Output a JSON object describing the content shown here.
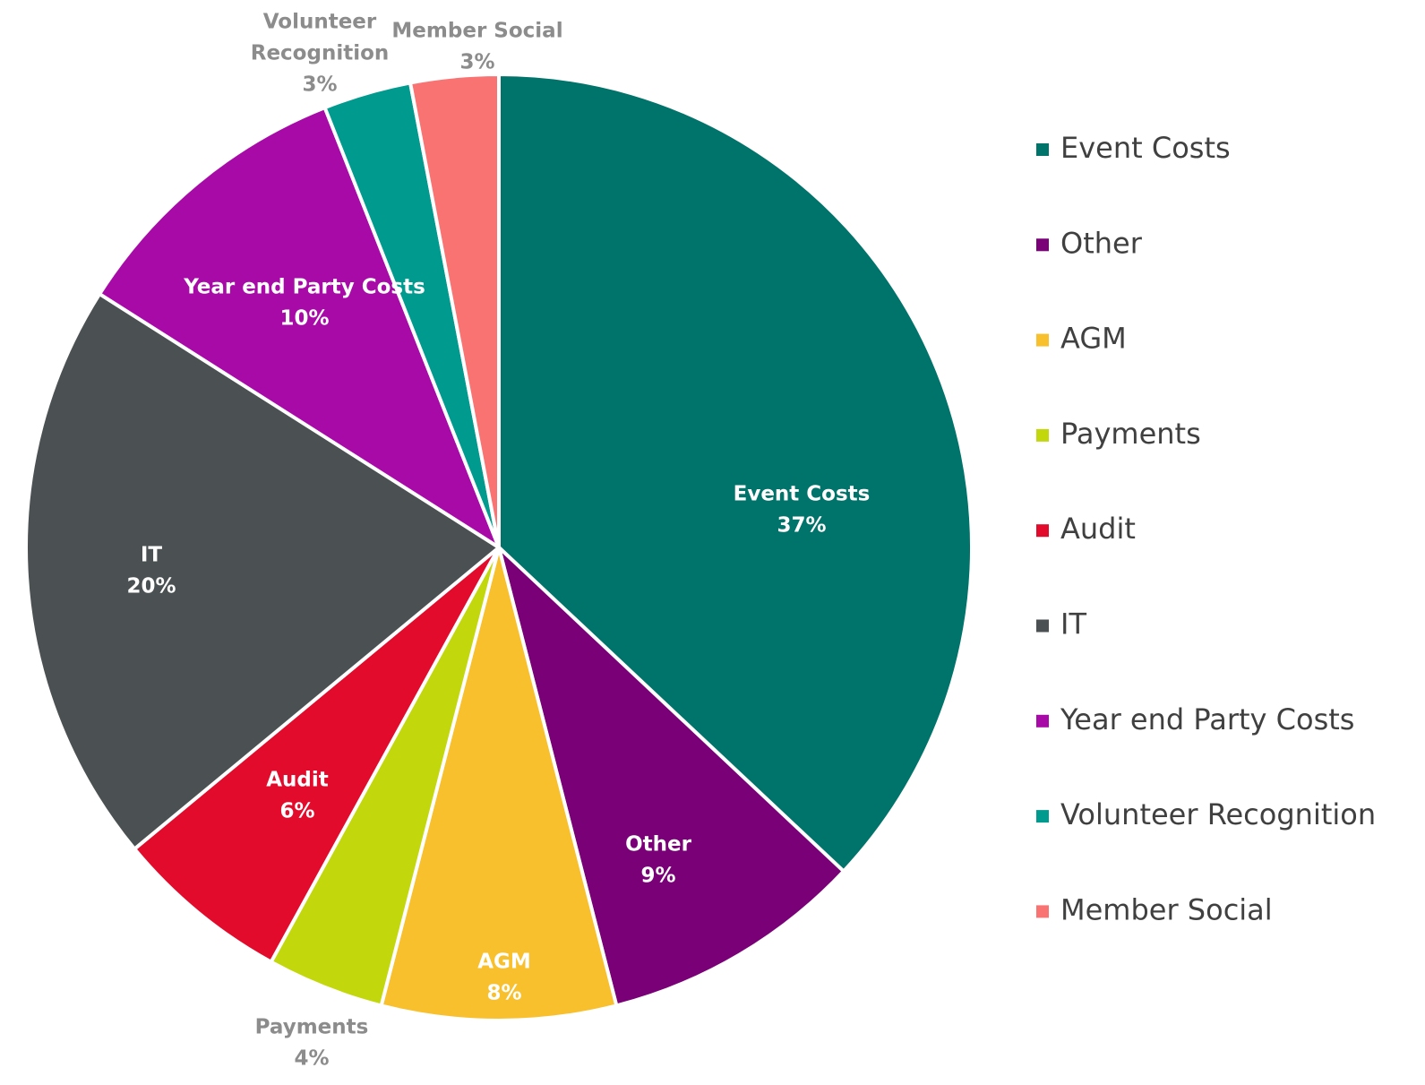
{
  "chart_data": {
    "type": "pie",
    "title": "",
    "unit": "%",
    "slices": [
      {
        "label": "Event Costs",
        "value": 37,
        "display": "37%",
        "color": "#00736a",
        "label_style": "inside"
      },
      {
        "label": "Other",
        "value": 9,
        "display": "9%",
        "color": "#7a0077",
        "label_style": "inside"
      },
      {
        "label": "AGM",
        "value": 8,
        "display": "8%",
        "color": "#f9c02d",
        "label_style": "inside"
      },
      {
        "label": "Payments",
        "value": 4,
        "display": "4%",
        "color": "#c3d80c",
        "label_style": "outside"
      },
      {
        "label": "Audit",
        "value": 6,
        "display": "6%",
        "color": "#e20b2b",
        "label_style": "inside"
      },
      {
        "label": "IT",
        "value": 20,
        "display": "20%",
        "color": "#4b5152",
        "label_style": "inside"
      },
      {
        "label": "Year end Party Costs",
        "value": 10,
        "display": "10%",
        "color": "#a80aa8",
        "label_style": "inside"
      },
      {
        "label": "Volunteer Recognition",
        "value": 3,
        "display": "3%",
        "color": "#009a8f",
        "label_style": "outside"
      },
      {
        "label": "Member Social",
        "value": 3,
        "display": "3%",
        "color": "#f97373",
        "label_style": "outside"
      }
    ],
    "legend_position": "right",
    "start_angle_deg": 0,
    "direction": "clockwise"
  }
}
